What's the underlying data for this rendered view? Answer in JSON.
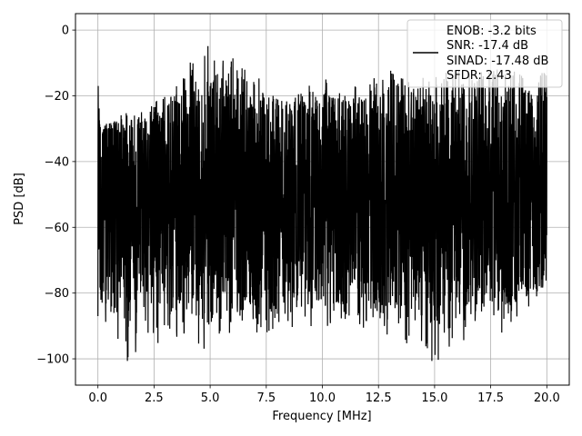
{
  "chart_data": {
    "type": "line",
    "xlabel": "Frequency [MHz]",
    "ylabel": "PSD [dB]",
    "xlim": [
      -1.0,
      21.0
    ],
    "ylim": [
      -108,
      5
    ],
    "x_ticks": [
      0.0,
      2.5,
      5.0,
      7.5,
      10.0,
      12.5,
      15.0,
      17.5,
      20.0
    ],
    "x_tick_labels": [
      "0.0",
      "2.5",
      "5.0",
      "7.5",
      "10.0",
      "12.5",
      "15.0",
      "17.5",
      "20.0"
    ],
    "y_ticks": [
      0,
      -20,
      -40,
      -60,
      -80,
      -100
    ],
    "y_tick_labels": [
      "0",
      "−20",
      "−40",
      "−60",
      "−80",
      "−100"
    ],
    "grid": true,
    "legend_position": "top-right",
    "legend_lines": [
      "ENOB: -3.2 bits",
      "SNR: -17.4 dB",
      "SINAD: -17.48 dB",
      "SFDR: 2.43"
    ],
    "series": [
      {
        "color": "#000000",
        "x_range": [
          0.0,
          20.0
        ],
        "n_points": 3000,
        "upper_envelope": {
          "x": [
            0.0,
            0.05,
            0.2,
            1.0,
            2.0,
            3.0,
            3.5,
            4.0,
            4.5,
            5.0,
            5.5,
            6.0,
            7.0,
            8.0,
            9.0,
            10.0,
            11.0,
            12.0,
            13.0,
            14.0,
            15.0,
            16.0,
            17.0,
            18.0,
            19.0,
            20.0
          ],
          "y": [
            -35,
            -17,
            -27,
            -25,
            -23,
            -20,
            -14,
            -10,
            -8,
            -4,
            -6,
            -8,
            -14,
            -16,
            -18,
            -14,
            -16,
            -15,
            -12,
            -15,
            -14,
            -12,
            -12,
            -12,
            -12,
            -12
          ]
        },
        "lower_envelope": {
          "x": [
            0.0,
            1.5,
            2.0,
            3.0,
            4.0,
            5.0,
            6.0,
            8.0,
            10.0,
            12.0,
            14.0,
            15.0,
            16.0,
            18.0,
            20.0
          ],
          "y": [
            -87,
            -103,
            -92,
            -97,
            -92,
            -102,
            -92,
            -92,
            -90,
            -91,
            -97,
            -102,
            -95,
            -92,
            -80
          ]
        },
        "core_range": [
          -75,
          -32
        ]
      }
    ]
  }
}
